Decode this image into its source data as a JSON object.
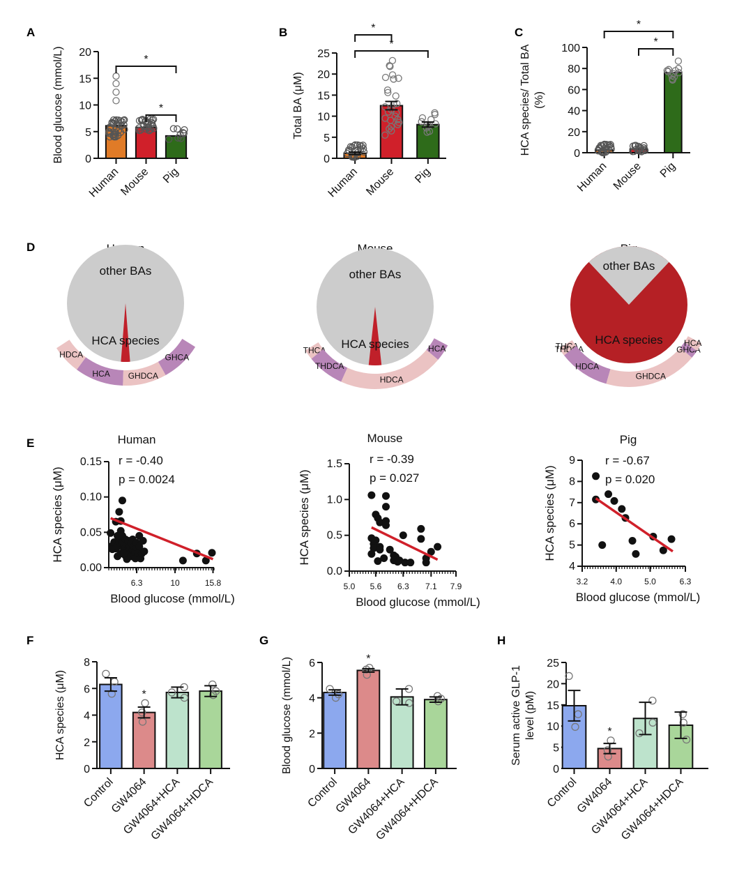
{
  "chart_data": [
    {
      "panel": "A",
      "type": "bar",
      "ylabel": "Blood glucose (mmol/L)",
      "categories": [
        "Human",
        "Mouse",
        "Pig"
      ],
      "values": [
        6.1,
        5.8,
        4.2
      ],
      "colors": [
        "#e07b27",
        "#d0202a",
        "#2e6b1a"
      ],
      "ylim": [
        0,
        20
      ],
      "yticks": [
        0,
        5,
        10,
        15,
        20
      ],
      "outliers": {
        "Human": [
          10.8,
          12.4,
          14.0,
          15.4
        ]
      },
      "significance": [
        {
          "from": "Human",
          "to": "Pig",
          "label": "*"
        },
        {
          "from": "Mouse",
          "to": "Pig",
          "label": "*"
        }
      ]
    },
    {
      "panel": "B",
      "type": "bar",
      "ylabel": "Total BA (μM)",
      "categories": [
        "Human",
        "Mouse",
        "Pig"
      ],
      "values": [
        1.2,
        12.5,
        8.0
      ],
      "errors": [
        0.3,
        1.0,
        0.6
      ],
      "colors": [
        "#e07b27",
        "#d0202a",
        "#2e6b1a"
      ],
      "ylim": [
        0,
        25
      ],
      "yticks": [
        0,
        5,
        10,
        15,
        20,
        25
      ],
      "points": {
        "Mouse": [
          23.2,
          22.0,
          21.8,
          19.8,
          19.2,
          18.8,
          19.0,
          16.2,
          15.6,
          14.8,
          13.0,
          12.8,
          12.2,
          11.5,
          10.8,
          10.0,
          9.5,
          9.0,
          8.5,
          8.0,
          7.5,
          7.0,
          6.5,
          5.5,
          9.2,
          11.0
        ],
        "Pig": [
          10.8,
          10.4,
          9.6,
          9.2,
          8.7,
          8.2,
          7.6,
          7.2,
          6.4,
          6.2,
          8.0
        ]
      },
      "significance": [
        {
          "from": "Human",
          "to": "Mouse",
          "label": "*"
        },
        {
          "from": "Human",
          "to": "Pig",
          "label": "*"
        }
      ]
    },
    {
      "panel": "C",
      "type": "bar",
      "ylabel": "HCA species/ Total BA (%)",
      "categories": [
        "Human",
        "Mouse",
        "Pig"
      ],
      "values": [
        2.5,
        3.5,
        76
      ],
      "colors": [
        "#e07b27",
        "#d0202a",
        "#2e6b1a"
      ],
      "ylim": [
        0,
        100
      ],
      "yticks": [
        0,
        20,
        40,
        60,
        80,
        100
      ],
      "points": {
        "Pig": [
          87,
          80,
          79,
          78,
          77,
          76,
          75,
          73,
          72,
          70,
          69,
          78
        ]
      },
      "significance": [
        {
          "from": "Human",
          "to": "Pig",
          "label": "*"
        },
        {
          "from": "Mouse",
          "to": "Pig",
          "label": "*"
        }
      ]
    },
    {
      "panel": "D",
      "type": "pie",
      "pies": [
        {
          "title": "Human",
          "slices": [
            {
              "label": "other BAs",
              "value": 97.5,
              "color": "#cccccc"
            },
            {
              "label": "HCA species",
              "value": 2.5,
              "color": "#c0202a"
            }
          ],
          "ring": [
            {
              "label": "HDCA",
              "value": 18,
              "color": "#ebc3c3"
            },
            {
              "label": "HCA",
              "value": 30,
              "color": "#b886b8"
            },
            {
              "label": "GHDCA",
              "value": 27,
              "color": "#ebc3c3"
            },
            {
              "label": "GHCA",
              "value": 25,
              "color": "#b886b8"
            }
          ]
        },
        {
          "title": "Mouse",
          "slices": [
            {
              "label": "other BAs",
              "value": 96.5,
              "color": "#cccccc"
            },
            {
              "label": "HCA species",
              "value": 3.5,
              "color": "#c0202a"
            }
          ],
          "ring": [
            {
              "label": "THCA",
              "value": 6,
              "color": "#ebc3c3"
            },
            {
              "label": "THDCA",
              "value": 22,
              "color": "#b886b8"
            },
            {
              "label": "HDCA",
              "value": 62,
              "color": "#ebc3c3"
            },
            {
              "label": "HCA",
              "value": 10,
              "color": "#b886b8"
            }
          ]
        },
        {
          "title": "Pig",
          "slices": [
            {
              "label": "other BAs",
              "value": 24,
              "color": "#cccccc"
            },
            {
              "label": "HCA species",
              "value": 76,
              "color": "#b52025"
            }
          ],
          "ring": [
            {
              "label": "THCA",
              "value": 3,
              "color": "#ebc3c3"
            },
            {
              "label": "THDCA",
              "value": 2,
              "color": "#ebc3c3"
            },
            {
              "label": "HDCA",
              "value": 30,
              "color": "#b886b8"
            },
            {
              "label": "GHDCA",
              "value": 55,
              "color": "#ebc3c3"
            },
            {
              "label": "GHCA",
              "value": 5,
              "color": "#b886b8"
            },
            {
              "label": "HCA",
              "value": 5,
              "color": "#ebc3c3"
            }
          ]
        }
      ]
    },
    {
      "panel": "E",
      "type": "scatter",
      "plots": [
        {
          "title": "Human",
          "r_text": "r = -0.40",
          "p_text": "p = 0.0024",
          "xlabel": "Blood glucose (mmol/L)",
          "ylabel": "HCA species (μM)",
          "xscale": "log",
          "xlim": [
            4.5,
            16
          ],
          "ylim": [
            0,
            0.15
          ],
          "yticks": [
            "0.00",
            "0.05",
            "0.10",
            "0.15"
          ],
          "xticks": [
            "6.3",
            "10",
            "15.8"
          ],
          "xtick_values": [
            6.3,
            10,
            15.8
          ],
          "fit": [
            [
              4.6,
              0.07
            ],
            [
              15.8,
              0.012
            ]
          ],
          "points": [
            [
              4.6,
              0.049
            ],
            [
              4.7,
              0.031
            ],
            [
              4.7,
              0.026
            ],
            [
              4.8,
              0.036
            ],
            [
              4.9,
              0.027
            ],
            [
              4.9,
              0.065
            ],
            [
              5.0,
              0.016
            ],
            [
              5.0,
              0.03
            ],
            [
              5.1,
              0.079
            ],
            [
              5.1,
              0.037
            ],
            [
              5.2,
              0.066
            ],
            [
              5.2,
              0.052
            ],
            [
              5.2,
              0.02
            ],
            [
              5.3,
              0.095
            ],
            [
              5.3,
              0.045
            ],
            [
              5.3,
              0.034
            ],
            [
              5.4,
              0.033
            ],
            [
              5.4,
              0.026
            ],
            [
              5.5,
              0.04
            ],
            [
              5.5,
              0.028
            ],
            [
              5.5,
              0.017
            ],
            [
              5.6,
              0.012
            ],
            [
              5.6,
              0.032
            ],
            [
              5.7,
              0.038
            ],
            [
              5.7,
              0.025
            ],
            [
              5.8,
              0.03
            ],
            [
              5.8,
              0.02
            ],
            [
              5.9,
              0.035
            ],
            [
              5.9,
              0.016
            ],
            [
              6.0,
              0.04
            ],
            [
              6.0,
              0.025
            ],
            [
              6.1,
              0.03
            ],
            [
              6.1,
              0.018
            ],
            [
              6.2,
              0.013
            ],
            [
              6.2,
              0.022
            ],
            [
              6.3,
              0.028
            ],
            [
              6.3,
              0.035
            ],
            [
              6.4,
              0.02
            ],
            [
              6.5,
              0.045
            ],
            [
              6.5,
              0.03
            ],
            [
              6.6,
              0.013
            ],
            [
              6.7,
              0.02
            ],
            [
              6.8,
              0.038
            ],
            [
              6.9,
              0.023
            ],
            [
              5.4,
              0.02
            ],
            [
              5.0,
              0.045
            ],
            [
              11.0,
              0.01
            ],
            [
              13.0,
              0.02
            ],
            [
              14.5,
              0.01
            ],
            [
              15.6,
              0.021
            ]
          ]
        },
        {
          "title": "Mouse",
          "r_text": "r = -0.39",
          "p_text": "p = 0.027",
          "xlabel": "Blood glucose (mmol/L)",
          "ylabel": "HCA species (μM)",
          "xscale": "log",
          "xlim": [
            5.0,
            7.9
          ],
          "ylim": [
            0,
            1.5
          ],
          "yticks": [
            "0.0",
            "0.5",
            "1.0",
            "1.5"
          ],
          "xticks": [
            "5.0",
            "5.6",
            "6.3",
            "7.1",
            "7.9"
          ],
          "xtick_values": [
            5.0,
            5.6,
            6.3,
            7.1,
            7.9
          ],
          "fit": [
            [
              5.5,
              0.61
            ],
            [
              7.3,
              0.16
            ]
          ],
          "points": [
            [
              5.5,
              1.06
            ],
            [
              5.85,
              1.05
            ],
            [
              5.85,
              0.9
            ],
            [
              5.6,
              0.79
            ],
            [
              5.65,
              0.74
            ],
            [
              5.7,
              0.68
            ],
            [
              5.85,
              0.7
            ],
            [
              5.85,
              0.64
            ],
            [
              5.5,
              0.46
            ],
            [
              5.6,
              0.43
            ],
            [
              5.55,
              0.38
            ],
            [
              5.55,
              0.32
            ],
            [
              5.5,
              0.24
            ],
            [
              5.7,
              0.34
            ],
            [
              5.7,
              0.3
            ],
            [
              5.8,
              0.18
            ],
            [
              5.95,
              0.3
            ],
            [
              6.05,
              0.22
            ],
            [
              6.1,
              0.2
            ],
            [
              6.05,
              0.15
            ],
            [
              6.15,
              0.13
            ],
            [
              6.2,
              0.15
            ],
            [
              6.35,
              0.12
            ],
            [
              6.5,
              0.12
            ],
            [
              6.3,
              0.5
            ],
            [
              6.8,
              0.59
            ],
            [
              6.8,
              0.45
            ],
            [
              6.95,
              0.18
            ],
            [
              6.95,
              0.12
            ],
            [
              7.1,
              0.27
            ],
            [
              7.3,
              0.34
            ],
            [
              5.65,
              0.14
            ]
          ]
        },
        {
          "title": "Pig",
          "r_text": "r = -0.67",
          "p_text": "p = 0.020",
          "xlabel": "Blood glucose (mmol/L)",
          "ylabel": "HCA species (μM)",
          "xscale": "log",
          "xlim": [
            3.2,
            6.3
          ],
          "ylim": [
            4,
            9
          ],
          "yticks": [
            "4",
            "5",
            "6",
            "7",
            "8",
            "9"
          ],
          "xticks": [
            "3.2",
            "4.0",
            "5.0",
            "6.3"
          ],
          "xtick_values": [
            3.2,
            4.0,
            5.0,
            6.3
          ],
          "fit": [
            [
              3.5,
              7.2
            ],
            [
              5.8,
              4.7
            ]
          ],
          "points": [
            [
              3.5,
              8.25
            ],
            [
              3.5,
              7.15
            ],
            [
              3.65,
              5.0
            ],
            [
              3.8,
              7.4
            ],
            [
              3.95,
              7.08
            ],
            [
              4.15,
              6.7
            ],
            [
              4.25,
              6.28
            ],
            [
              4.45,
              5.2
            ],
            [
              4.55,
              4.58
            ],
            [
              5.1,
              5.4
            ],
            [
              5.45,
              4.75
            ],
            [
              5.75,
              5.28
            ]
          ]
        }
      ]
    },
    {
      "panel": "F",
      "type": "bar",
      "ylabel": "HCA species (μM)",
      "categories": [
        "Control",
        "GW4064",
        "GW4064+HCA",
        "GW4064+HDCA"
      ],
      "values": [
        6.3,
        4.2,
        5.7,
        5.8
      ],
      "errors": [
        0.5,
        0.4,
        0.4,
        0.4
      ],
      "colors": [
        "#8ca8ee",
        "#dc8a8a",
        "#bde3cc",
        "#a9d69a"
      ],
      "ylim": [
        0,
        8
      ],
      "yticks": [
        0,
        2,
        4,
        6,
        8
      ],
      "points": [
        [
          7.1,
          6.5,
          5.6
        ],
        [
          4.9,
          4.2,
          3.5
        ],
        [
          6.1,
          5.3,
          5.7
        ],
        [
          6.3,
          5.5,
          5.8
        ]
      ],
      "significance_labels": [
        "",
        "*",
        "",
        ""
      ]
    },
    {
      "panel": "G",
      "type": "bar",
      "ylabel": "Blood glucose (mmol/L)",
      "categories": [
        "Control",
        "GW4064",
        "GW4064+HCA",
        "GW4064+HDCA"
      ],
      "values": [
        4.3,
        5.55,
        4.05,
        3.9
      ],
      "errors": [
        0.15,
        0.1,
        0.45,
        0.15
      ],
      "colors": [
        "#8ca8ee",
        "#dc8a8a",
        "#bde3cc",
        "#a9d69a"
      ],
      "ylim": [
        0,
        6
      ],
      "yticks": [
        0,
        2,
        4,
        6
      ],
      "points": [
        [
          4.5,
          4.2,
          4.0
        ],
        [
          5.7,
          5.6,
          5.3
        ],
        [
          4.5,
          3.7,
          3.8
        ],
        [
          4.1,
          3.8,
          3.95
        ]
      ],
      "significance_labels": [
        "",
        "*",
        "",
        ""
      ]
    },
    {
      "panel": "H",
      "type": "bar",
      "ylabel": "Serum active GLP-1 level (pM)",
      "categories": [
        "Control",
        "GW4064",
        "GW4064+HCA",
        "GW4064+HDCA"
      ],
      "values": [
        14.8,
        4.7,
        11.8,
        10.2
      ],
      "errors": [
        3.6,
        1.2,
        3.8,
        3.1
      ],
      "colors": [
        "#8ca8ee",
        "#dc8a8a",
        "#bde3cc",
        "#a9d69a"
      ],
      "ylim": [
        0,
        25
      ],
      "yticks": [
        0,
        5,
        10,
        15,
        20,
        25
      ],
      "points": [
        [
          21.8,
          12.8,
          9.8
        ],
        [
          6.6,
          4.3,
          2.8
        ],
        [
          16.0,
          10.8,
          8.3
        ],
        [
          12.8,
          10.8,
          6.8
        ]
      ],
      "significance_labels": [
        "",
        "*",
        "",
        ""
      ]
    }
  ],
  "panel_letters": [
    "A",
    "B",
    "C",
    "D",
    "E",
    "F",
    "G",
    "H"
  ],
  "accent_colors": {
    "human": "#e07b27",
    "mouse": "#d0202a",
    "pig": "#2e6b1a",
    "fit_line": "#d0202a",
    "control": "#8ca8ee",
    "gw4064": "#dc8a8a",
    "gw_hca": "#bde3cc",
    "gw_hdca": "#a9d69a"
  }
}
